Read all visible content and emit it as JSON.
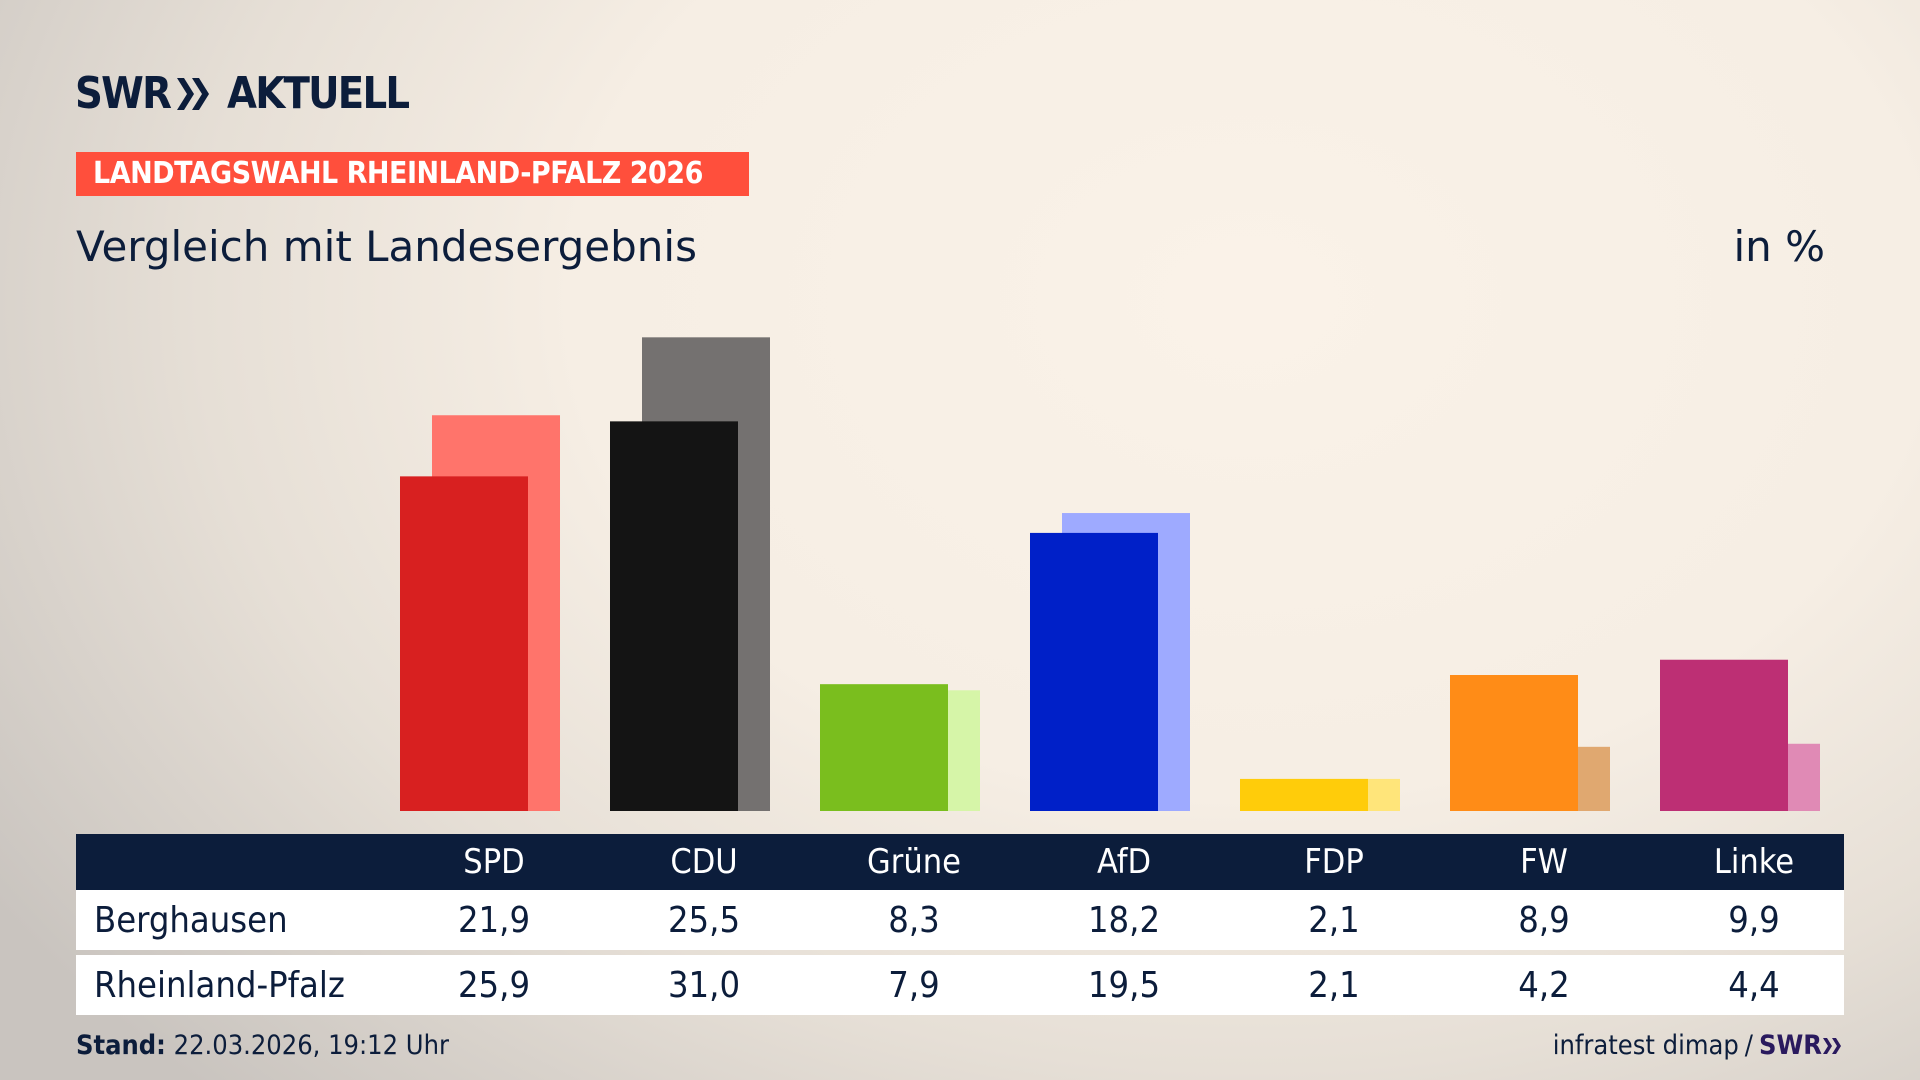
{
  "header": {
    "logo_text": "SWR",
    "logo_suffix": "AKTUELL",
    "banner": "LANDTAGSWAHL RHEINLAND-PFALZ 2026",
    "subtitle": "Vergleich mit Landesergebnis",
    "unit": "in %"
  },
  "chart_data": {
    "type": "bar",
    "title": "Vergleich mit Landesergebnis",
    "ylabel": "in %",
    "ylim": [
      0,
      31
    ],
    "categories": [
      "SPD",
      "CDU",
      "Grüne",
      "AfD",
      "FDP",
      "FW",
      "Linke"
    ],
    "series": [
      {
        "name": "Berghausen",
        "values": [
          21.9,
          25.5,
          8.3,
          18.2,
          2.1,
          8.9,
          9.9
        ],
        "colors": [
          "#d82020",
          "#141414",
          "#7abe1e",
          "#0020c8",
          "#ffcc0a",
          "#ff8c17",
          "#bd2f74"
        ]
      },
      {
        "name": "Rheinland-Pfalz",
        "values": [
          25.9,
          31.0,
          7.9,
          19.5,
          2.1,
          4.2,
          4.4
        ],
        "colors": [
          "#ff746b",
          "#747170",
          "#d6f5a8",
          "#9eaaff",
          "#ffe57a",
          "#e0a870",
          "#e08ab5"
        ]
      }
    ]
  },
  "table": {
    "headers": [
      "SPD",
      "CDU",
      "Grüne",
      "AfD",
      "FDP",
      "FW",
      "Linke"
    ],
    "rows": [
      {
        "label": "Berghausen",
        "values": [
          "21,9",
          "25,5",
          "8,3",
          "18,2",
          "2,1",
          "8,9",
          "9,9"
        ]
      },
      {
        "label": "Rheinland-Pfalz",
        "values": [
          "25,9",
          "31,0",
          "7,9",
          "19,5",
          "2,1",
          "4,2",
          "4,4"
        ]
      }
    ]
  },
  "footer": {
    "stand_label": "Stand:",
    "stand_value": "22.03.2026, 19:12 Uhr",
    "source": "infratest dimap",
    "separator": "/",
    "source_logo": "SWR"
  }
}
